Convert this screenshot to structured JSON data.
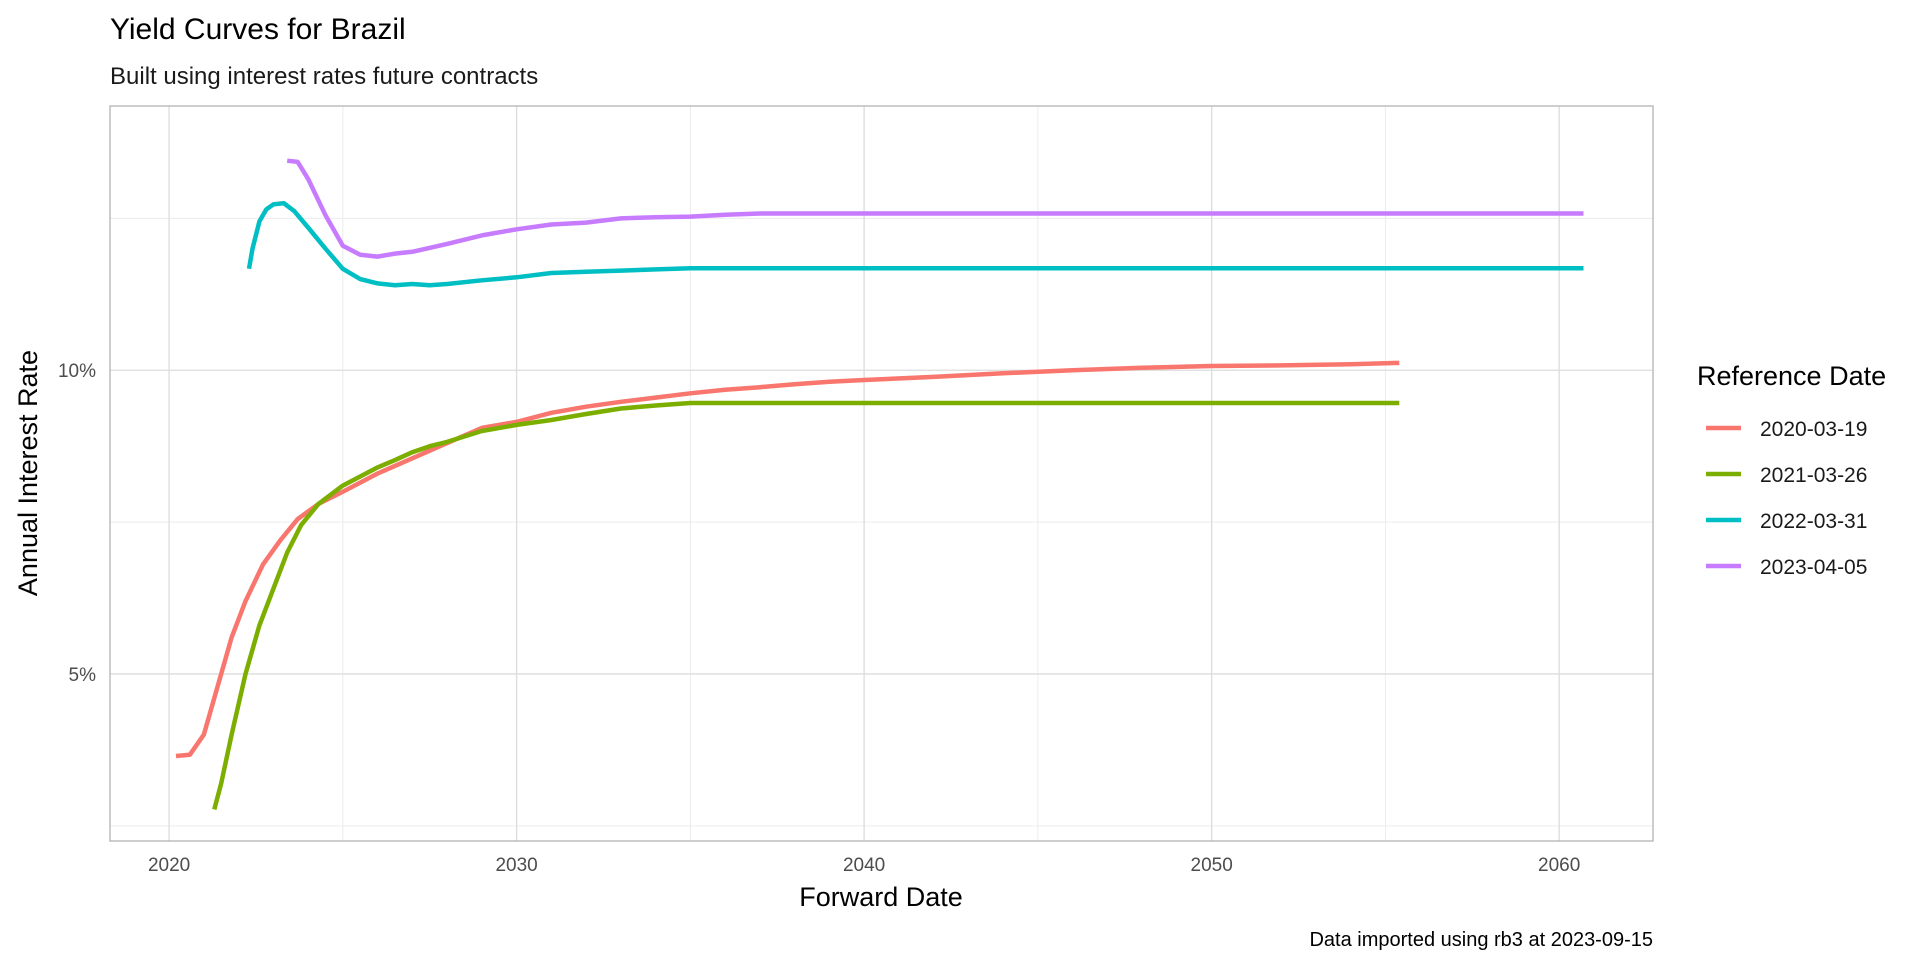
{
  "chart_data": {
    "type": "line",
    "title": "Yield Curves for Brazil",
    "subtitle": "Built using interest rates future contracts",
    "xlabel": "Forward Date",
    "ylabel": "Annual Interest Rate",
    "caption": "Data imported using rb3 at 2023-09-15",
    "xlim": [
      2018.3,
      2062.7
    ],
    "ylim": [
      0.0225,
      0.1435
    ],
    "x_ticks": [
      2020,
      2030,
      2040,
      2050,
      2060
    ],
    "x_tick_labels": [
      "2020",
      "2030",
      "2040",
      "2050",
      "2060"
    ],
    "y_ticks": [
      0.05,
      0.1
    ],
    "y_tick_labels": [
      "5%",
      "10%"
    ],
    "grid": true,
    "legend": {
      "title": "Reference Date",
      "position": "right"
    },
    "series": [
      {
        "name": "2020-03-19",
        "color": "#F8766D",
        "points": [
          [
            2020.2,
            0.0365
          ],
          [
            2020.6,
            0.0367
          ],
          [
            2021.0,
            0.04
          ],
          [
            2021.4,
            0.048
          ],
          [
            2021.8,
            0.056
          ],
          [
            2022.2,
            0.062
          ],
          [
            2022.7,
            0.068
          ],
          [
            2023.2,
            0.072
          ],
          [
            2023.7,
            0.0755
          ],
          [
            2024.3,
            0.078
          ],
          [
            2025.0,
            0.08
          ],
          [
            2026.0,
            0.083
          ],
          [
            2027.0,
            0.0855
          ],
          [
            2028.0,
            0.088
          ],
          [
            2029.0,
            0.0905
          ],
          [
            2030.0,
            0.0915
          ],
          [
            2031.0,
            0.093
          ],
          [
            2032.0,
            0.094
          ],
          [
            2033.0,
            0.0948
          ],
          [
            2034.0,
            0.0955
          ],
          [
            2035.0,
            0.0962
          ],
          [
            2036.0,
            0.0968
          ],
          [
            2037.0,
            0.0972
          ],
          [
            2038.0,
            0.0977
          ],
          [
            2039.0,
            0.0981
          ],
          [
            2040.0,
            0.0984
          ],
          [
            2042.0,
            0.0989
          ],
          [
            2044.0,
            0.0995
          ],
          [
            2046.0,
            0.1
          ],
          [
            2048.0,
            0.1004
          ],
          [
            2050.0,
            0.1007
          ],
          [
            2052.0,
            0.1008
          ],
          [
            2054.0,
            0.101
          ],
          [
            2055.4,
            0.1012
          ]
        ]
      },
      {
        "name": "2021-03-26",
        "color": "#7CAE00",
        "points": [
          [
            2021.3,
            0.0277
          ],
          [
            2021.5,
            0.032
          ],
          [
            2021.8,
            0.04
          ],
          [
            2022.2,
            0.05
          ],
          [
            2022.6,
            0.058
          ],
          [
            2023.0,
            0.064
          ],
          [
            2023.4,
            0.07
          ],
          [
            2023.8,
            0.0745
          ],
          [
            2024.3,
            0.078
          ],
          [
            2025.0,
            0.081
          ],
          [
            2025.5,
            0.0825
          ],
          [
            2026.0,
            0.084
          ],
          [
            2026.5,
            0.0852
          ],
          [
            2027.0,
            0.0865
          ],
          [
            2027.5,
            0.0875
          ],
          [
            2028.0,
            0.0882
          ],
          [
            2029.0,
            0.09
          ],
          [
            2030.0,
            0.091
          ],
          [
            2031.0,
            0.0918
          ],
          [
            2032.0,
            0.0928
          ],
          [
            2033.0,
            0.0937
          ],
          [
            2034.0,
            0.0942
          ],
          [
            2035.0,
            0.0946
          ],
          [
            2036.0,
            0.0946
          ],
          [
            2040.0,
            0.0946
          ],
          [
            2045.0,
            0.0946
          ],
          [
            2050.0,
            0.0946
          ],
          [
            2055.4,
            0.0946
          ]
        ]
      },
      {
        "name": "2022-03-31",
        "color": "#00BFC4",
        "points": [
          [
            2022.3,
            0.1167
          ],
          [
            2022.4,
            0.12
          ],
          [
            2022.6,
            0.1245
          ],
          [
            2022.8,
            0.1265
          ],
          [
            2023.0,
            0.1273
          ],
          [
            2023.3,
            0.1275
          ],
          [
            2023.6,
            0.1262
          ],
          [
            2024.0,
            0.1235
          ],
          [
            2024.5,
            0.12
          ],
          [
            2025.0,
            0.1167
          ],
          [
            2025.5,
            0.115
          ],
          [
            2026.0,
            0.1143
          ],
          [
            2026.5,
            0.114
          ],
          [
            2027.0,
            0.1142
          ],
          [
            2027.5,
            0.114
          ],
          [
            2028.0,
            0.1142
          ],
          [
            2029.0,
            0.1148
          ],
          [
            2030.0,
            0.1153
          ],
          [
            2031.0,
            0.116
          ],
          [
            2032.0,
            0.1162
          ],
          [
            2033.0,
            0.1164
          ],
          [
            2034.0,
            0.1166
          ],
          [
            2035.0,
            0.1168
          ],
          [
            2040.0,
            0.1168
          ],
          [
            2045.0,
            0.1168
          ],
          [
            2050.0,
            0.1168
          ],
          [
            2055.0,
            0.1168
          ],
          [
            2060.7,
            0.1168
          ]
        ]
      },
      {
        "name": "2023-04-05",
        "color": "#C77CFF",
        "points": [
          [
            2023.4,
            0.1345
          ],
          [
            2023.7,
            0.1343
          ],
          [
            2024.0,
            0.1315
          ],
          [
            2024.5,
            0.1255
          ],
          [
            2025.0,
            0.1205
          ],
          [
            2025.5,
            0.119
          ],
          [
            2026.0,
            0.1187
          ],
          [
            2026.5,
            0.1192
          ],
          [
            2027.0,
            0.1195
          ],
          [
            2028.0,
            0.1208
          ],
          [
            2029.0,
            0.1222
          ],
          [
            2030.0,
            0.1232
          ],
          [
            2031.0,
            0.124
          ],
          [
            2032.0,
            0.1243
          ],
          [
            2033.0,
            0.125
          ],
          [
            2034.0,
            0.1252
          ],
          [
            2035.0,
            0.1253
          ],
          [
            2036.0,
            0.1256
          ],
          [
            2037.0,
            0.1258
          ],
          [
            2040.0,
            0.1258
          ],
          [
            2045.0,
            0.1258
          ],
          [
            2050.0,
            0.1258
          ],
          [
            2055.0,
            0.1258
          ],
          [
            2060.7,
            0.1258
          ]
        ]
      }
    ]
  }
}
